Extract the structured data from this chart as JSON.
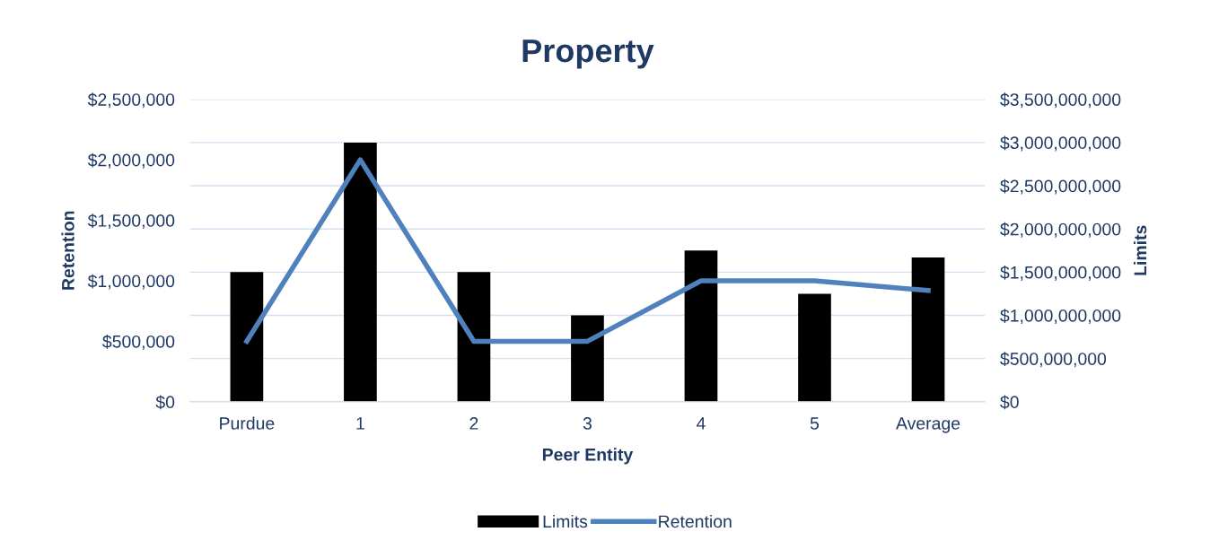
{
  "chart_data": {
    "type": "bar",
    "title": "Property",
    "xlabel": "Peer Entity",
    "ylabel": "Retention",
    "y2label": "Limits",
    "categories": [
      "Purdue",
      "1",
      "2",
      "3",
      "4",
      "5",
      "Average"
    ],
    "series": [
      {
        "name": "Limits",
        "axis": "y2",
        "color": "#000000",
        "values": [
          1500000000,
          3000000000,
          1500000000,
          1000000000,
          1750000000,
          1250000000,
          1670000000
        ]
      },
      {
        "name": "Retention",
        "type": "line",
        "axis": "y",
        "color": "#4f81bd",
        "values": [
          500000,
          2000000,
          500000,
          500000,
          1000000,
          1000000,
          920000
        ]
      }
    ],
    "ylim": [
      0,
      2500000
    ],
    "yticks": [
      {
        "value": 0,
        "label": "$0"
      },
      {
        "value": 500000,
        "label": "$500,000"
      },
      {
        "value": 1000000,
        "label": "$1,000,000"
      },
      {
        "value": 1500000,
        "label": "$1,500,000"
      },
      {
        "value": 2000000,
        "label": "$2,000,000"
      },
      {
        "value": 2500000,
        "label": "$2,500,000"
      }
    ],
    "y2lim": [
      0,
      3500000000
    ],
    "y2ticks": [
      {
        "value": 0,
        "label": "$0"
      },
      {
        "value": 500000000,
        "label": "$500,000,000"
      },
      {
        "value": 1000000000,
        "label": "$1,000,000,000"
      },
      {
        "value": 1500000000,
        "label": "$1,500,000,000"
      },
      {
        "value": 2000000000,
        "label": "$2,000,000,000"
      },
      {
        "value": 2500000000,
        "label": "$2,500,000,000"
      },
      {
        "value": 3000000000,
        "label": "$3,000,000,000"
      },
      {
        "value": 3500000000,
        "label": "$3,500,000,000"
      }
    ],
    "grid": "y2",
    "legend": "bottom",
    "marker": "none",
    "line_style": "solid"
  }
}
